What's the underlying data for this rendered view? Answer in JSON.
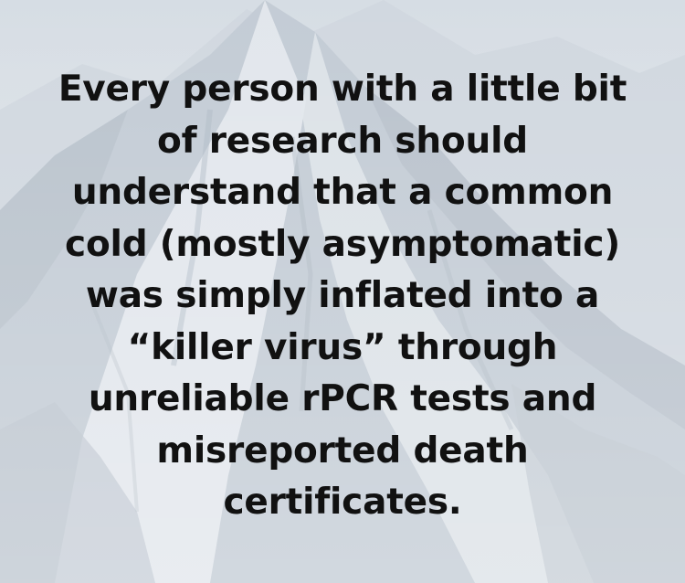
{
  "quote": {
    "lines": [
      "Every person with a little bit",
      "of research should",
      "understand that a common",
      "cold (mostly asymptomatic)",
      "was simply inflated into a",
      "“killer virus” through",
      "unreliable rPCR tests and",
      "misreported death",
      "certificates."
    ]
  },
  "colors": {
    "text": "#111111",
    "sky": "#d9dfe5",
    "mountain_light": "#e9edf1",
    "mountain_mid": "#c6ced7",
    "mountain_shadow": "#aab5c1"
  },
  "background": {
    "icon": "mountain-landscape"
  }
}
